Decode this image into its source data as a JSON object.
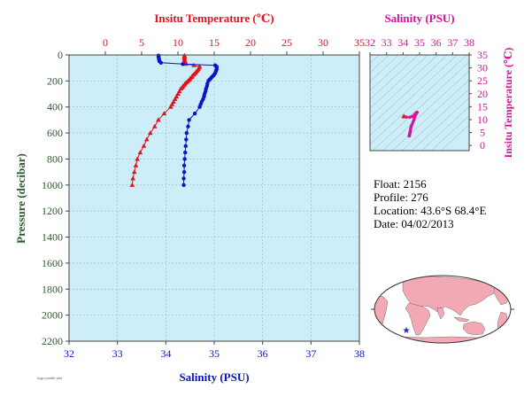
{
  "float_info": {
    "float_label": "Float:",
    "float_value": "2156",
    "profile_label": "Profile:",
    "profile_value": "276",
    "location_label": "Location:",
    "location_value": "43.6°S  68.4°E",
    "date_label": "Date:",
    "date_value": "04/02/2013"
  },
  "footer_text": "Argo profile plot",
  "colors": {
    "temperature": "#e0141e",
    "salinity": "#0a14c8",
    "ts": "#d2149a",
    "plot_bg": "#cdeef9",
    "axis_left": "#2f5a2f",
    "land": "#f3a9b4",
    "ocean": "#ffffff",
    "marker": "#1a2ab8"
  },
  "chart_data": [
    {
      "type": "line",
      "id": "profile",
      "top_axis": {
        "label": "Insitu Temperature (℃)",
        "range": [
          -5,
          35
        ],
        "ticks": [
          0,
          5,
          10,
          15,
          20,
          25,
          30,
          35
        ]
      },
      "bottom_axis": {
        "label": "Salinity (PSU)",
        "range": [
          32,
          38
        ],
        "ticks": [
          32,
          33,
          34,
          35,
          36,
          37,
          38
        ]
      },
      "left_axis": {
        "label": "Pressure (decibar)",
        "range": [
          0,
          2200
        ],
        "inverted": true,
        "ticks": [
          0,
          200,
          400,
          600,
          800,
          1000,
          1200,
          1400,
          1600,
          1800,
          2000,
          2200
        ]
      },
      "grid": true,
      "series": [
        {
          "name": "Insitu Temperature",
          "marker": "triangle",
          "pressure": [
            5,
            10,
            20,
            30,
            40,
            50,
            60,
            70,
            80,
            90,
            100,
            110,
            120,
            130,
            140,
            150,
            160,
            170,
            180,
            190,
            200,
            210,
            220,
            230,
            240,
            250,
            260,
            280,
            300,
            320,
            340,
            360,
            380,
            400,
            450,
            500,
            550,
            600,
            650,
            700,
            750,
            800,
            850,
            900,
            950,
            1000
          ],
          "values": [
            10.9,
            10.9,
            10.9,
            10.9,
            10.9,
            11.0,
            11.0,
            11.1,
            12.2,
            13.0,
            12.9,
            12.8,
            12.7,
            12.5,
            12.4,
            12.2,
            12.0,
            11.9,
            11.7,
            11.6,
            11.4,
            11.2,
            11.0,
            10.9,
            10.7,
            10.6,
            10.4,
            10.2,
            10.0,
            9.8,
            9.6,
            9.4,
            9.2,
            9.0,
            8.1,
            7.3,
            6.8,
            6.2,
            5.7,
            5.3,
            4.8,
            4.4,
            4.2,
            4.0,
            3.8,
            3.7
          ]
        },
        {
          "name": "Salinity",
          "marker": "circle",
          "pressure": [
            5,
            10,
            20,
            30,
            40,
            50,
            60,
            70,
            80,
            90,
            100,
            110,
            120,
            130,
            140,
            150,
            160,
            170,
            180,
            190,
            200,
            220,
            240,
            260,
            280,
            300,
            320,
            340,
            360,
            380,
            400,
            450,
            500,
            550,
            600,
            650,
            700,
            750,
            800,
            850,
            900,
            950,
            1000
          ],
          "values": [
            33.85,
            33.85,
            33.85,
            33.86,
            33.86,
            33.87,
            33.9,
            34.35,
            35.02,
            35.05,
            35.05,
            35.05,
            35.04,
            35.03,
            35.02,
            35.0,
            34.98,
            34.95,
            34.93,
            34.9,
            34.88,
            34.86,
            34.85,
            34.83,
            34.82,
            34.8,
            34.79,
            34.77,
            34.74,
            34.72,
            34.7,
            34.6,
            34.48,
            34.46,
            34.43,
            34.42,
            34.41,
            34.4,
            34.39,
            34.38,
            34.38,
            34.37,
            34.37
          ]
        }
      ]
    },
    {
      "type": "scatter",
      "id": "ts_diagram",
      "title": "Salinity (PSU)",
      "x_axis": {
        "label": "Salinity (PSU)",
        "range": [
          32,
          38
        ],
        "ticks": [
          32,
          33,
          34,
          35,
          36,
          37,
          38
        ]
      },
      "y_axis": {
        "label": "Insitu Temperature (℃)",
        "range": [
          -2,
          35
        ],
        "ticks": [
          0,
          5,
          10,
          15,
          20,
          25,
          30,
          35
        ]
      },
      "points": [
        [
          34.05,
          11.2
        ],
        [
          34.2,
          11.0
        ],
        [
          34.4,
          10.9
        ],
        [
          34.55,
          11.2
        ],
        [
          34.7,
          12.0
        ],
        [
          34.8,
          12.6
        ],
        [
          34.85,
          12.8
        ],
        [
          34.78,
          12.0
        ],
        [
          34.72,
          11.0
        ],
        [
          34.66,
          10.0
        ],
        [
          34.6,
          9.0
        ],
        [
          34.53,
          8.0
        ],
        [
          34.49,
          7.2
        ],
        [
          34.46,
          6.4
        ],
        [
          34.44,
          5.6
        ],
        [
          34.42,
          5.0
        ],
        [
          34.4,
          4.4
        ],
        [
          34.39,
          4.0
        ],
        [
          34.38,
          3.8
        ],
        [
          34.37,
          3.7
        ]
      ]
    }
  ]
}
